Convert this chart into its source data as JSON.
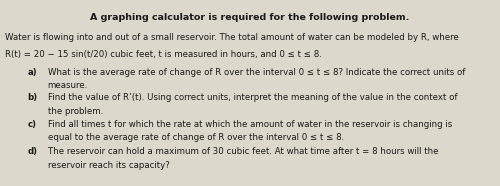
{
  "title": "A graphing calculator is required for the following problem.",
  "line1": "Water is flowing into and out of a small reservoir. The total amount of water can be modeled by R, where",
  "line2": "R(t) = 20 − 15 sin(t/20) cubic feet, t is measured in hours, and 0 ≤ t ≤ 8.",
  "parts": [
    {
      "label": "a)",
      "text1": "What is the average rate of change of R over the interval 0 ≤ t ≤ 8? Indicate the correct units of",
      "text2": "measure."
    },
    {
      "label": "b)",
      "text1": "Find the value of R’(t). Using correct units, interpret the meaning of the value in the context of",
      "text2": "the problem."
    },
    {
      "label": "c)",
      "text1": "Find all times t for which the rate at which the amount of water in the reservoir is changing is",
      "text2": "equal to the average rate of change of R over the interval 0 ≤ t ≤ 8."
    },
    {
      "label": "d)",
      "text1": "The reservoir can hold a maximum of 30 cubic feet. At what time after t = 8 hours will the",
      "text2": "reservoir reach its capacity?"
    }
  ],
  "bg_color": "#ddd8cc",
  "text_color": "#1a1a1a",
  "title_fontsize": 6.8,
  "body_fontsize": 6.2,
  "label_indent": 0.055,
  "text_indent": 0.095
}
